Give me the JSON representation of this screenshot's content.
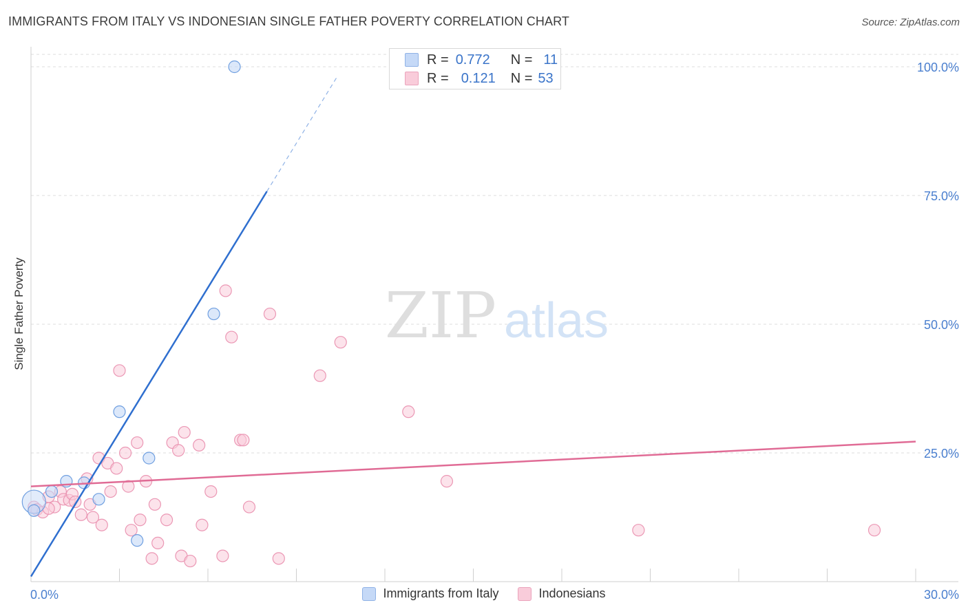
{
  "chart_data": {
    "type": "scatter",
    "title": "IMMIGRANTS FROM ITALY VS INDONESIAN SINGLE FATHER POVERTY CORRELATION CHART",
    "source": "Source: ZipAtlas.com",
    "xlabel": "",
    "ylabel": "Single Father Poverty",
    "xlim": [
      0,
      30
    ],
    "ylim": [
      0,
      102
    ],
    "x_tick_labels": [
      "0.0%",
      "30.0%"
    ],
    "y_ticks": [
      25,
      50,
      75,
      100
    ],
    "y_tick_labels": [
      "25.0%",
      "50.0%",
      "75.0%",
      "100.0%"
    ],
    "watermark": "ZIPatlas",
    "legend_stats": [
      {
        "series": "Immigrants from Italy",
        "r_label": "R =",
        "r": "0.772",
        "n_label": "N =",
        "n": "11"
      },
      {
        "series": "Indonesians",
        "r_label": "R =",
        "r": "0.121",
        "n_label": "N =",
        "n": "53"
      }
    ],
    "series": [
      {
        "name": "Immigrants from Italy",
        "color": "#6f9fe0",
        "fill": "#c5d9f7",
        "trend_color": "#2f6fcf",
        "trend": {
          "slope": 9.35,
          "intercept": 1.0,
          "solid_x_range": [
            0,
            8.0
          ],
          "dashed_x_range": [
            8.0,
            10.4
          ]
        },
        "points": [
          [
            0.1,
            15.5
          ],
          [
            0.7,
            17.5
          ],
          [
            1.2,
            19.5
          ],
          [
            1.8,
            19.2
          ],
          [
            2.3,
            16.0
          ],
          [
            3.0,
            33.0
          ],
          [
            3.6,
            8.0
          ],
          [
            4.0,
            24.0
          ],
          [
            6.2,
            52.0
          ],
          [
            6.9,
            100.0
          ],
          [
            0.1,
            13.8
          ]
        ]
      },
      {
        "name": "Indonesians",
        "color": "#eb97b4",
        "fill": "#f9ccda",
        "trend_color": "#e06b95",
        "trend": {
          "slope": 0.29,
          "intercept": 18.5,
          "solid_x_range": [
            0,
            30
          ]
        },
        "points": [
          [
            0.1,
            14.5
          ],
          [
            0.2,
            14.0
          ],
          [
            0.4,
            13.5
          ],
          [
            0.6,
            16.5
          ],
          [
            0.8,
            14.5
          ],
          [
            1.0,
            17.5
          ],
          [
            1.1,
            16.0
          ],
          [
            1.3,
            15.8
          ],
          [
            1.4,
            17.0
          ],
          [
            1.5,
            15.5
          ],
          [
            1.7,
            13.0
          ],
          [
            1.9,
            20.0
          ],
          [
            2.0,
            15.0
          ],
          [
            2.1,
            12.5
          ],
          [
            2.3,
            24.0
          ],
          [
            2.4,
            11.0
          ],
          [
            2.6,
            23.0
          ],
          [
            2.7,
            17.5
          ],
          [
            2.9,
            22.0
          ],
          [
            3.0,
            41.0
          ],
          [
            3.2,
            25.0
          ],
          [
            3.3,
            18.5
          ],
          [
            3.4,
            10.0
          ],
          [
            3.6,
            27.0
          ],
          [
            3.7,
            12.0
          ],
          [
            3.9,
            19.5
          ],
          [
            4.1,
            4.5
          ],
          [
            4.2,
            15.0
          ],
          [
            4.3,
            7.5
          ],
          [
            4.6,
            12.0
          ],
          [
            4.8,
            27.0
          ],
          [
            5.0,
            25.5
          ],
          [
            5.1,
            5.0
          ],
          [
            5.2,
            29.0
          ],
          [
            5.4,
            4.0
          ],
          [
            5.7,
            26.5
          ],
          [
            5.8,
            11.0
          ],
          [
            6.1,
            17.5
          ],
          [
            6.5,
            5.0
          ],
          [
            6.6,
            56.5
          ],
          [
            6.8,
            47.5
          ],
          [
            7.1,
            27.5
          ],
          [
            7.2,
            27.5
          ],
          [
            7.4,
            14.5
          ],
          [
            8.1,
            52.0
          ],
          [
            8.4,
            4.5
          ],
          [
            9.8,
            40.0
          ],
          [
            10.5,
            46.5
          ],
          [
            12.8,
            33.0
          ],
          [
            14.1,
            19.5
          ],
          [
            20.6,
            10.0
          ],
          [
            28.6,
            10.0
          ],
          [
            0.6,
            14.2
          ]
        ]
      }
    ]
  },
  "legend": {
    "series1_label": "Immigrants from Italy",
    "series2_label": "Indonesians"
  }
}
